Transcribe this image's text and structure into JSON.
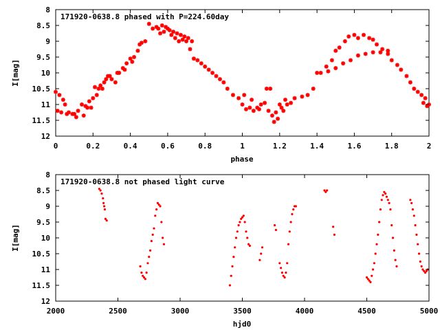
{
  "colors": {
    "points": "#ff0000",
    "frame": "#000000",
    "background": "#ffffff"
  },
  "chart_data": [
    {
      "type": "scatter",
      "title": "171920-0638.8 phased with P=224.60day",
      "xlabel": "phase",
      "ylabel": "I[mag]",
      "xlim": [
        0,
        2
      ],
      "ylim": [
        12,
        8
      ],
      "y_inverted": true,
      "xticks": [
        "0",
        "0.2",
        "0.4",
        "0.6",
        "0.8",
        "1",
        "1.2",
        "1.4",
        "1.6",
        "1.8",
        "2"
      ],
      "yticks": [
        "8",
        "8.5",
        "9",
        "9.5",
        "10",
        "10.5",
        "11",
        "11.5",
        "12"
      ],
      "grid": false,
      "marker": "star",
      "series": [
        {
          "x": [
            0.0,
            0.02,
            0.04,
            0.05,
            0.07,
            0.1,
            0.12,
            0.14,
            0.16,
            0.18,
            0.19,
            0.2,
            0.22,
            0.23,
            0.24,
            0.25,
            0.26,
            0.28,
            0.3,
            0.32,
            0.34,
            0.36,
            0.38,
            0.4,
            0.42,
            0.44,
            0.45,
            0.46,
            0.48,
            0.5,
            0.52,
            0.54,
            0.56,
            0.57,
            0.58,
            0.6,
            0.62,
            0.64,
            0.66,
            0.68,
            0.7,
            0.72,
            0.74,
            0.76,
            0.78,
            0.8,
            0.82,
            0.84,
            0.86,
            0.88,
            0.9,
            0.92,
            0.95,
            0.98,
            1.0,
            1.02,
            1.04,
            1.06,
            1.08,
            1.1,
            1.12,
            1.14,
            1.16,
            1.18,
            1.2,
            1.22,
            1.24,
            1.26,
            1.28,
            1.32,
            1.35,
            1.38,
            1.4,
            1.42,
            1.45,
            1.48,
            1.5,
            1.52,
            1.55,
            1.57,
            1.6,
            1.62,
            1.65,
            1.68,
            1.7,
            1.72,
            1.75,
            1.78,
            1.8,
            1.83,
            1.85,
            1.88,
            1.9,
            1.92,
            1.94,
            1.96,
            1.98,
            2.0,
            0.01,
            0.03,
            0.06,
            0.09,
            0.11,
            0.15,
            0.17,
            0.21,
            0.27,
            0.29,
            0.33,
            0.37,
            0.41,
            0.55,
            0.59,
            0.61,
            0.63,
            0.65,
            0.67,
            0.69,
            0.71,
            0.73,
            1.01,
            1.05,
            1.09,
            1.13,
            1.15,
            1.17,
            1.19,
            1.21,
            1.23,
            1.46,
            1.5,
            1.54,
            1.58,
            1.62,
            1.66,
            1.7,
            1.74,
            1.78,
            1.97,
            1.99
          ],
          "y": [
            10.6,
            10.7,
            10.85,
            11.0,
            11.25,
            11.3,
            11.2,
            11.0,
            11.05,
            10.9,
            11.1,
            10.8,
            10.7,
            10.5,
            10.4,
            10.5,
            10.3,
            10.1,
            10.2,
            10.3,
            10.0,
            9.85,
            9.7,
            9.55,
            9.5,
            9.3,
            9.1,
            9.05,
            9.0,
            8.45,
            8.6,
            8.55,
            8.75,
            8.5,
            8.7,
            8.6,
            8.8,
            8.9,
            9.0,
            8.95,
            9.0,
            9.25,
            9.55,
            9.6,
            9.7,
            9.8,
            9.9,
            10.0,
            10.1,
            10.2,
            10.3,
            10.5,
            10.7,
            10.8,
            11.0,
            11.15,
            11.1,
            11.2,
            11.1,
            11.0,
            10.95,
            11.2,
            11.35,
            11.25,
            11.0,
            11.2,
            11.0,
            10.95,
            10.8,
            10.75,
            10.7,
            10.5,
            10.0,
            10.0,
            9.8,
            9.6,
            9.3,
            9.2,
            9.0,
            8.85,
            8.8,
            8.9,
            8.8,
            8.9,
            8.95,
            9.1,
            9.25,
            9.4,
            9.6,
            9.75,
            9.9,
            10.1,
            10.3,
            10.5,
            10.6,
            10.7,
            10.8,
            11.0,
            11.2,
            11.25,
            11.3,
            11.3,
            11.4,
            11.35,
            11.1,
            10.45,
            10.2,
            10.1,
            10.0,
            9.9,
            9.65,
            8.6,
            8.55,
            8.65,
            8.7,
            8.75,
            8.8,
            8.85,
            8.9,
            9.0,
            10.7,
            10.85,
            11.15,
            10.5,
            10.5,
            11.55,
            11.45,
            11.1,
            10.85,
            9.95,
            9.85,
            9.7,
            9.6,
            9.45,
            9.4,
            9.35,
            9.35,
            9.3,
            10.95,
            11.05
          ]
        }
      ]
    },
    {
      "type": "scatter",
      "title": "171920-0638.8 not phased light curve",
      "xlabel": "hjd0",
      "ylabel": "I[mag]",
      "xlim": [
        2000,
        5000
      ],
      "ylim": [
        12,
        8
      ],
      "y_inverted": true,
      "xticks": [
        "2000",
        "2500",
        "3000",
        "3500",
        "4000",
        "4500",
        "5000"
      ],
      "yticks": [
        "8",
        "8.5",
        "9",
        "9.5",
        "10",
        "10.5",
        "11",
        "11.5",
        "12"
      ],
      "grid": false,
      "marker": "dot",
      "series": [
        {
          "x": [
            2350,
            2360,
            2370,
            2380,
            2385,
            2390,
            2395,
            2400,
            2410,
            2680,
            2690,
            2700,
            2710,
            2720,
            2730,
            2740,
            2750,
            2760,
            2770,
            2780,
            2790,
            2800,
            2810,
            2820,
            2830,
            2840,
            2850,
            2860,
            2870,
            3400,
            3410,
            3420,
            3430,
            3440,
            3450,
            3460,
            3470,
            3480,
            3490,
            3500,
            3510,
            3520,
            3530,
            3540,
            3550,
            3560,
            3640,
            3650,
            3660,
            3760,
            3770,
            3800,
            3810,
            3820,
            3830,
            3840,
            3850,
            3860,
            3870,
            3880,
            3890,
            3900,
            3910,
            3920,
            3930,
            4160,
            4170,
            4180,
            4230,
            4240,
            4500,
            4510,
            4520,
            4530,
            4540,
            4550,
            4560,
            4570,
            4580,
            4590,
            4600,
            4610,
            4620,
            4630,
            4640,
            4650,
            4660,
            4670,
            4680,
            4690,
            4700,
            4710,
            4720,
            4730,
            4740,
            4850,
            4860,
            4870,
            4880,
            4890,
            4900,
            4910,
            4920,
            4930,
            4940,
            4950,
            4960,
            4970,
            4980,
            4990
          ],
          "y": [
            8.45,
            8.5,
            8.6,
            8.75,
            8.9,
            9.0,
            9.1,
            9.4,
            9.45,
            10.9,
            11.1,
            11.2,
            11.25,
            11.3,
            11.1,
            10.8,
            10.6,
            10.4,
            10.1,
            9.9,
            9.7,
            9.3,
            9.1,
            8.9,
            8.95,
            9.0,
            9.5,
            10.0,
            10.2,
            11.5,
            11.2,
            10.9,
            10.6,
            10.3,
            10.0,
            9.8,
            9.6,
            9.5,
            9.4,
            9.35,
            9.3,
            9.5,
            9.8,
            10.0,
            10.2,
            10.25,
            10.7,
            10.5,
            10.3,
            9.6,
            9.75,
            10.8,
            10.95,
            11.1,
            11.2,
            11.25,
            11.1,
            10.8,
            10.2,
            9.8,
            9.5,
            9.25,
            9.1,
            9.0,
            9.0,
            8.5,
            8.55,
            8.5,
            9.65,
            9.9,
            11.25,
            11.3,
            11.35,
            11.4,
            11.2,
            11.0,
            10.8,
            10.5,
            10.2,
            9.9,
            9.5,
            9.1,
            8.8,
            8.65,
            8.55,
            8.6,
            8.7,
            8.8,
            8.9,
            9.1,
            9.6,
            10.0,
            10.4,
            10.7,
            10.9,
            8.8,
            8.9,
            9.1,
            9.3,
            9.6,
            9.9,
            10.2,
            10.5,
            10.75,
            10.9,
            11.0,
            11.05,
            11.1,
            11.05,
            11.0
          ]
        }
      ]
    }
  ]
}
